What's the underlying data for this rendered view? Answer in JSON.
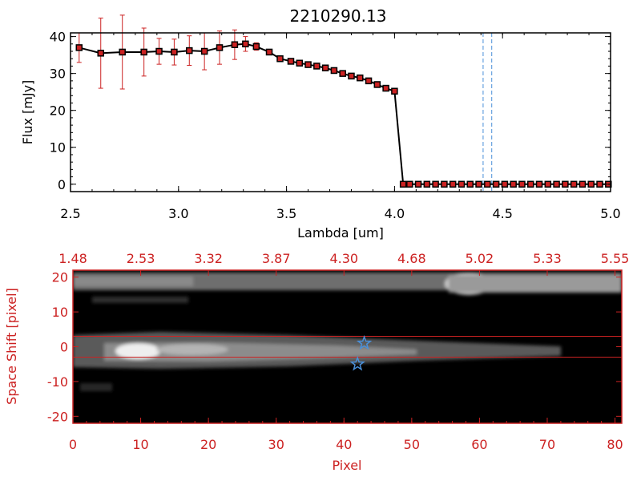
{
  "chart_data": [
    {
      "type": "line",
      "title": "2210290.13",
      "xlabel": "Lambda [um]",
      "ylabel": "Flux [mJy]",
      "xlim": [
        2.5,
        5.0
      ],
      "ylim": [
        -2,
        41
      ],
      "xticks": [
        "2.5",
        "3.0",
        "3.5",
        "4.0",
        "4.5",
        "5.0"
      ],
      "yticks": [
        "0",
        "10",
        "20",
        "30",
        "40"
      ],
      "colors": {
        "line": "#000000",
        "marker": "#cc2222",
        "errorbar": "#cc2222",
        "vline": "#4a90d9",
        "zero_line": "#cc2222"
      },
      "vlines": [
        4.41,
        4.45
      ],
      "series": [
        {
          "x": [
            2.54,
            2.64,
            2.74,
            2.84,
            2.91,
            2.98,
            3.05,
            3.12,
            3.19,
            3.26,
            3.31,
            3.36,
            3.42,
            3.47,
            3.52,
            3.56,
            3.6,
            3.64,
            3.68,
            3.72,
            3.76,
            3.8,
            3.84,
            3.88,
            3.92,
            3.96,
            4.0,
            4.04,
            4.07,
            4.11,
            4.15,
            4.19,
            4.23,
            4.27,
            4.31,
            4.35,
            4.39,
            4.43,
            4.47,
            4.51,
            4.55,
            4.59,
            4.63,
            4.67,
            4.71,
            4.75,
            4.79,
            4.83,
            4.87,
            4.91,
            4.95,
            4.99
          ],
          "values": [
            37,
            35.5,
            35.8,
            35.8,
            36,
            35.8,
            36.2,
            36,
            37,
            37.8,
            38,
            37.3,
            35.8,
            34,
            33.3,
            32.8,
            32.4,
            32,
            31.5,
            30.8,
            30,
            29.3,
            28.8,
            28,
            27,
            26,
            25.2,
            0,
            0,
            0,
            0,
            0,
            0,
            0,
            0,
            0,
            0,
            0,
            0,
            0,
            0,
            0,
            0,
            0,
            0,
            0,
            0,
            0,
            0,
            0,
            0,
            0
          ],
          "errors": [
            4,
            9.5,
            10,
            6.5,
            3.5,
            3.5,
            4,
            5,
            4.5,
            4,
            2,
            1,
            0.5,
            0.3,
            0.3,
            0.3,
            0.3,
            0.3,
            0.3,
            0.3,
            0.3,
            0.3,
            0.3,
            0.3,
            0.3,
            0.3,
            0.3,
            0,
            0,
            0,
            0,
            0,
            0,
            0,
            0,
            0,
            0,
            0,
            0,
            0,
            0,
            0,
            0,
            0,
            0,
            0,
            0,
            0,
            0,
            0,
            0,
            0
          ]
        }
      ]
    },
    {
      "type": "heatmap",
      "xlabel": "Pixel",
      "ylabel": "Space Shift [pixel]",
      "xlim": [
        0,
        81
      ],
      "ylim": [
        -22,
        22
      ],
      "xticks": [
        "0",
        "10",
        "20",
        "30",
        "40",
        "50",
        "60",
        "70",
        "80"
      ],
      "yticks": [
        "-20",
        "-10",
        "0",
        "10",
        "20"
      ],
      "top_ticks": [
        "1.48",
        "2.53",
        "3.32",
        "3.87",
        "4.30",
        "4.68",
        "5.02",
        "5.33",
        "5.55"
      ],
      "extraction_window": [
        -3,
        3
      ],
      "markers": [
        {
          "x": 43,
          "y": 1
        },
        {
          "x": 42,
          "y": -5
        }
      ],
      "colors": {
        "axis": "#cc2222",
        "background": "#000000",
        "marker": "#4a90d9"
      }
    }
  ]
}
